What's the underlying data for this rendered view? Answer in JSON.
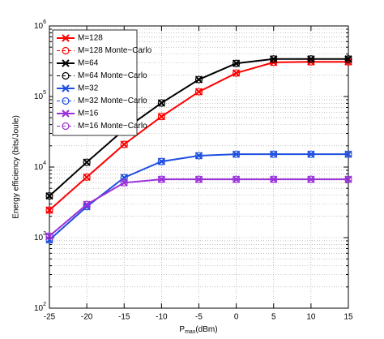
{
  "chart_data": {
    "type": "line",
    "xlabel": {
      "base": "P",
      "subscript": "max",
      "unit": "(dBm)"
    },
    "ylabel": "Energy efficiency (bits/Joule)",
    "x": [
      -25,
      -20,
      -15,
      -10,
      -5,
      0,
      5,
      10,
      15
    ],
    "xlim": [
      -25,
      15
    ],
    "xticks": [
      -25,
      -20,
      -15,
      -10,
      -5,
      0,
      5,
      10,
      15
    ],
    "ylim": [
      100,
      1000000
    ],
    "yticks": [
      {
        "value": 100,
        "label": "10^2"
      },
      {
        "value": 1000,
        "label": "10^3"
      },
      {
        "value": 10000,
        "label": "10^4"
      },
      {
        "value": 100000,
        "label": "10^5"
      },
      {
        "value": 1000000,
        "label": "10^6"
      }
    ],
    "log_y": true,
    "grid": true,
    "minor_grid": true,
    "legend": "upper-left",
    "series": [
      {
        "name": "M=128",
        "color": "#ff0000",
        "marker": "x",
        "linestyle": "solid",
        "values": [
          2450,
          7200,
          21000,
          52000,
          117000,
          215000,
          305000,
          310000,
          310000
        ]
      },
      {
        "name": "M=128 Monte−Carlo",
        "color": "#ff0000",
        "marker": "o",
        "linestyle": "dashed",
        "values": [
          2450,
          7200,
          21000,
          52000,
          117000,
          215000,
          305000,
          310000,
          310000
        ]
      },
      {
        "name": "M=64",
        "color": "#000000",
        "marker": "x",
        "linestyle": "solid",
        "values": [
          3900,
          11700,
          34000,
          81000,
          174000,
          295000,
          340000,
          340000,
          340000
        ]
      },
      {
        "name": "M=64 Monte−Carlo",
        "color": "#000000",
        "marker": "o",
        "linestyle": "dashed",
        "values": [
          3900,
          11700,
          34000,
          81000,
          174000,
          295000,
          340000,
          340000,
          340000
        ]
      },
      {
        "name": "M=32",
        "color": "#1f4fe0",
        "marker": "x",
        "linestyle": "solid",
        "values": [
          930,
          2750,
          7100,
          12000,
          14500,
          15200,
          15200,
          15200,
          15200
        ]
      },
      {
        "name": "M=32 Monte−Carlo",
        "color": "#1f4fe0",
        "marker": "o",
        "linestyle": "dashed",
        "values": [
          930,
          2750,
          7100,
          12000,
          14500,
          15200,
          15200,
          15200,
          15200
        ]
      },
      {
        "name": "M=16",
        "color": "#9b30d9",
        "marker": "x",
        "linestyle": "solid",
        "values": [
          1050,
          2950,
          6000,
          6700,
          6700,
          6700,
          6700,
          6700,
          6700
        ]
      },
      {
        "name": "M=16 Monte−Carlo",
        "color": "#9b30d9",
        "marker": "o",
        "linestyle": "dashed",
        "values": [
          1050,
          2950,
          6000,
          6700,
          6700,
          6700,
          6700,
          6700,
          6700
        ]
      }
    ]
  }
}
